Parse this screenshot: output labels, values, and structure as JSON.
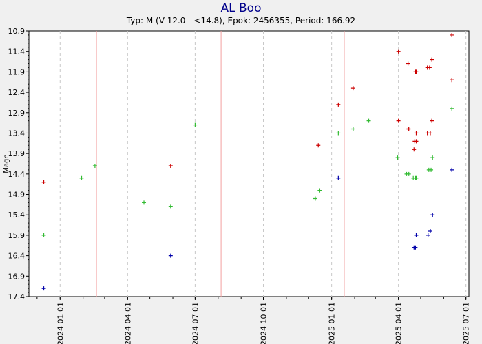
{
  "chart_data": {
    "type": "scatter",
    "title": "AL Boo",
    "subtitle": "Typ: M (V 12.0 - <14.8), Epok: 2456355, Period: 166.92",
    "ylabel": "Magn",
    "xlabel": "",
    "y_inverted": true,
    "ylim": [
      10.9,
      17.4
    ],
    "y_ticks": [
      "10.9",
      "11.4",
      "11.9",
      "12.4",
      "12.9",
      "13.4",
      "13.9",
      "14.4",
      "14.9",
      "15.4",
      "15.9",
      "16.4",
      "16.9",
      "17.4"
    ],
    "xlim": [
      "2023-11-20",
      "2025-07-05"
    ],
    "x_ticks": [
      {
        "date": "2024-01-01",
        "label": "2024 01 01"
      },
      {
        "date": "2024-04-01",
        "label": "2024 04 01"
      },
      {
        "date": "2024-07-01",
        "label": "2024 07 01"
      },
      {
        "date": "2024-10-01",
        "label": "2024 10 01"
      },
      {
        "date": "2025-01-01",
        "label": "2025 01 01"
      },
      {
        "date": "2025-04-01",
        "label": "2025 04 01"
      },
      {
        "date": "2025-07-01",
        "label": "2025 07 01"
      }
    ],
    "grid": true,
    "maxima_lines": [
      "2024-02-19",
      "2024-08-05",
      "2025-01-18"
    ],
    "series": [
      {
        "color": "#cc0000",
        "points": [
          [
            "2023-12-10",
            14.6
          ],
          [
            "2024-05-29",
            14.2
          ],
          [
            "2024-12-14",
            13.7
          ],
          [
            "2025-01-10",
            12.7
          ],
          [
            "2025-01-30",
            12.3
          ],
          [
            "2025-04-01",
            11.4
          ],
          [
            "2025-04-01",
            13.1
          ],
          [
            "2025-04-14",
            11.7
          ],
          [
            "2025-04-14",
            13.3
          ],
          [
            "2025-04-15",
            13.3
          ],
          [
            "2025-04-24",
            11.9
          ],
          [
            "2025-04-25",
            11.9
          ],
          [
            "2025-04-22",
            13.8
          ],
          [
            "2025-04-23",
            13.6
          ],
          [
            "2025-04-25",
            13.4
          ],
          [
            "2025-04-25",
            13.6
          ],
          [
            "2025-05-10",
            11.8
          ],
          [
            "2025-05-13",
            11.8
          ],
          [
            "2025-05-10",
            13.4
          ],
          [
            "2025-05-14",
            13.4
          ],
          [
            "2025-05-16",
            11.6
          ],
          [
            "2025-05-16",
            13.1
          ],
          [
            "2025-06-12",
            11.0
          ],
          [
            "2025-06-12",
            12.1
          ]
        ]
      },
      {
        "color": "#33bb33",
        "points": [
          [
            "2023-12-10",
            15.9
          ],
          [
            "2024-01-30",
            14.5
          ],
          [
            "2024-02-17",
            14.2
          ],
          [
            "2024-04-23",
            15.1
          ],
          [
            "2024-05-29",
            15.2
          ],
          [
            "2024-07-01",
            13.2
          ],
          [
            "2024-12-10",
            15.0
          ],
          [
            "2024-12-16",
            14.8
          ],
          [
            "2024-12-16",
            14.8
          ],
          [
            "2025-01-10",
            13.4
          ],
          [
            "2025-01-30",
            13.3
          ],
          [
            "2025-02-20",
            13.1
          ],
          [
            "2025-03-31",
            14.0
          ],
          [
            "2025-04-12",
            14.4
          ],
          [
            "2025-04-15",
            14.4
          ],
          [
            "2025-04-21",
            14.5
          ],
          [
            "2025-04-24",
            14.5
          ],
          [
            "2025-04-25",
            14.5
          ],
          [
            "2025-05-12",
            14.3
          ],
          [
            "2025-05-15",
            14.3
          ],
          [
            "2025-05-17",
            14.0
          ],
          [
            "2025-06-12",
            12.8
          ]
        ]
      },
      {
        "color": "#0000aa",
        "points": [
          [
            "2023-12-10",
            17.2
          ],
          [
            "2024-05-29",
            16.4
          ],
          [
            "2025-01-10",
            14.5
          ],
          [
            "2025-04-22",
            16.2
          ],
          [
            "2025-04-23",
            16.2
          ],
          [
            "2025-04-24",
            16.2
          ],
          [
            "2025-04-25",
            15.9
          ],
          [
            "2025-05-11",
            15.9
          ],
          [
            "2025-05-14",
            15.8
          ],
          [
            "2025-05-17",
            15.4
          ],
          [
            "2025-06-12",
            14.3
          ]
        ]
      }
    ]
  }
}
